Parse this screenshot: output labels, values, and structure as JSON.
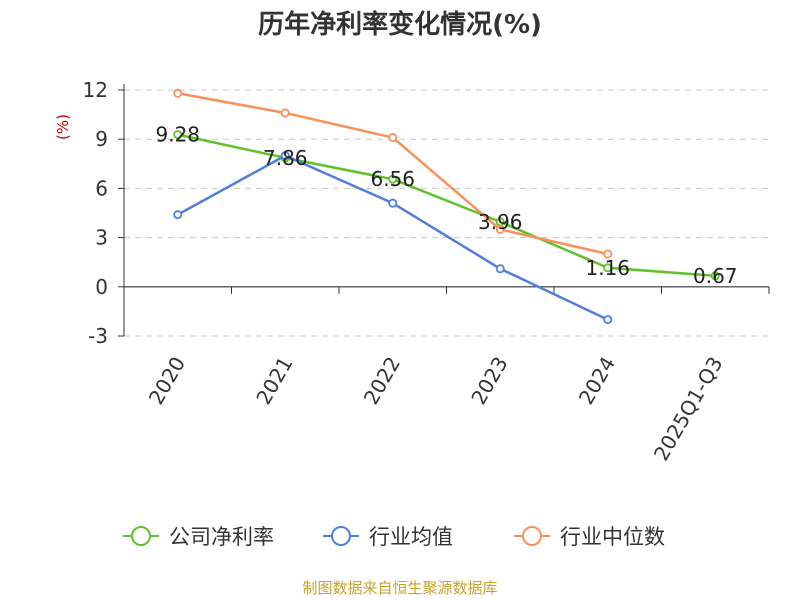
{
  "chart_data": {
    "type": "line",
    "title": "历年净利率变化情况(%)",
    "ylabel": "(%)",
    "xlabel": "",
    "categories": [
      "2020",
      "2021",
      "2022",
      "2023",
      "2024",
      "2025Q1-Q3"
    ],
    "ylim": [
      -3,
      12
    ],
    "yticks": [
      -3,
      0,
      3,
      6,
      9,
      12
    ],
    "grid": true,
    "legend_position": "bottom",
    "series": [
      {
        "name": "公司净利率",
        "color": "#5ec228",
        "values": [
          9.28,
          7.86,
          6.56,
          3.96,
          1.16,
          0.67
        ],
        "labels": [
          "9.28",
          "7.86",
          "6.56",
          "3.96",
          "1.16",
          "0.67"
        ]
      },
      {
        "name": "行业均值",
        "color": "#4f7fdc",
        "values": [
          4.4,
          8.0,
          5.1,
          1.1,
          -2.0,
          null
        ]
      },
      {
        "name": "行业中位数",
        "color": "#f79059",
        "values": [
          11.8,
          10.6,
          9.1,
          3.5,
          2.0,
          null
        ]
      }
    ]
  },
  "footer": "制图数据来自恒生聚源数据库"
}
